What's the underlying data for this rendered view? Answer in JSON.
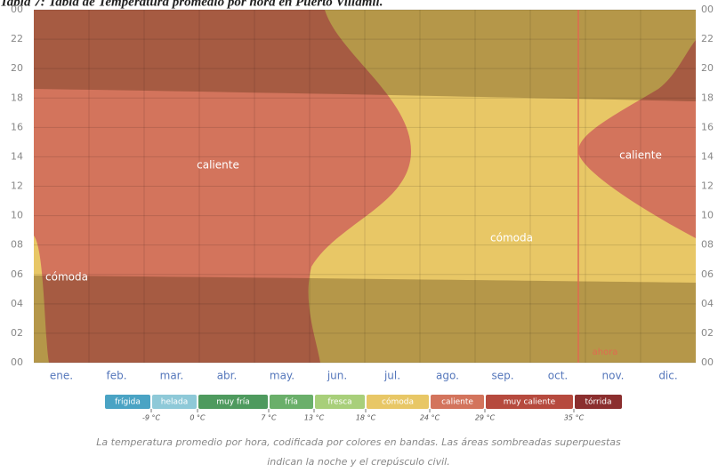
{
  "chart_data": {
    "type": "band-heatmap",
    "title": "Tabla 7: Tabla de Temperatura promedio por hora en Puerto Villamil.",
    "categories": [
      "ene.",
      "feb.",
      "mar.",
      "abr.",
      "may.",
      "jun.",
      "jul.",
      "ago.",
      "sep.",
      "oct.",
      "nov.",
      "dic."
    ],
    "ylim": [
      0,
      24
    ],
    "yticks": [
      {
        "value": 0,
        "label": "00"
      },
      {
        "value": 2,
        "label": "02"
      },
      {
        "value": 4,
        "label": "04"
      },
      {
        "value": 6,
        "label": "06"
      },
      {
        "value": 8,
        "label": "08"
      },
      10,
      12,
      14,
      16,
      18,
      20,
      22,
      {
        "value": 24,
        "label": "00"
      }
    ],
    "grid": true,
    "region_labels": [
      "caliente",
      "cómoda",
      "caliente",
      "cómoda"
    ],
    "now_label": "ahora",
    "legend": {
      "names": [
        "frígida",
        "helada",
        "muy fría",
        "fría",
        "fresca",
        "cómoda",
        "caliente",
        "muy caliente",
        "tórrida"
      ],
      "colors": [
        "#4aa3c4",
        "#8ec9d8",
        "#4e9a5e",
        "#6aaf6a",
        "#a8cf7a",
        "#e8c766",
        "#d3745c",
        "#b64a3e",
        "#8b2e2e"
      ],
      "thresholds": [
        {
          "value": -9,
          "label": "-9 °C"
        },
        {
          "value": 0,
          "label": "0 °C"
        },
        {
          "value": 7,
          "label": "7 °C"
        },
        {
          "value": 13,
          "label": "13 °C"
        },
        {
          "value": 18,
          "label": "18 °C"
        },
        {
          "value": 24,
          "label": "24 °C"
        },
        {
          "value": 29,
          "label": "29 °C"
        },
        {
          "value": 35,
          "label": "35 °C"
        }
      ]
    },
    "caption": [
      "La temperatura promedio por hora, codificada por colores en bandas. Las áreas sombreadas superpuestas",
      "indican la noche y el crepúsculo civil."
    ]
  }
}
